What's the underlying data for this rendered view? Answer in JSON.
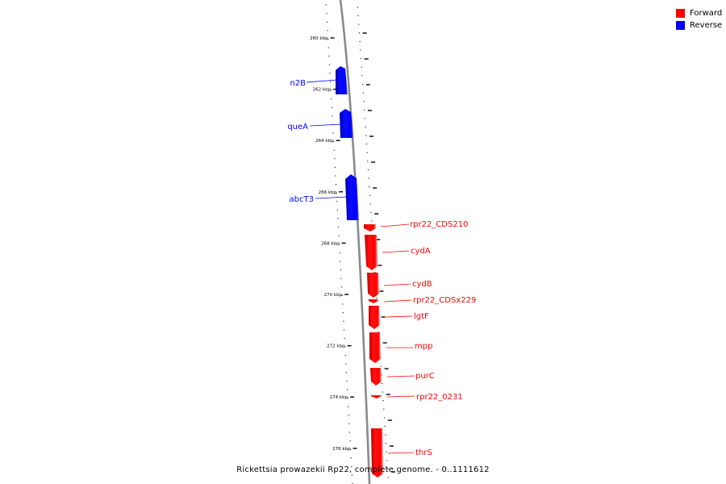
{
  "legend": {
    "forward_label": "Forward",
    "reverse_label": "Reverse",
    "forward_color": "#ff0000",
    "reverse_color": "#0000ff"
  },
  "caption": "Rickettsia prowazekii Rp22, complete genome. - 0..1111612",
  "ruler": {
    "unit": "kbp",
    "labels": [
      "260 kbp",
      "262 kbp",
      "264 kbp",
      "266 kbp",
      "268 kbp",
      "270 kbp",
      "272 kbp",
      "274 kbp",
      "276 kbp"
    ]
  },
  "genes": {
    "reverse": [
      {
        "name": "n2B"
      },
      {
        "name": "queA"
      },
      {
        "name": "abcT3"
      }
    ],
    "forward": [
      {
        "name": "rpr22_CDS210"
      },
      {
        "name": "cydA"
      },
      {
        "name": "cydB"
      },
      {
        "name": "rpr22_CDSx229"
      },
      {
        "name": "lgtF"
      },
      {
        "name": "mpp"
      },
      {
        "name": "purC"
      },
      {
        "name": "rpr22_0231"
      },
      {
        "name": "thrS"
      }
    ]
  }
}
